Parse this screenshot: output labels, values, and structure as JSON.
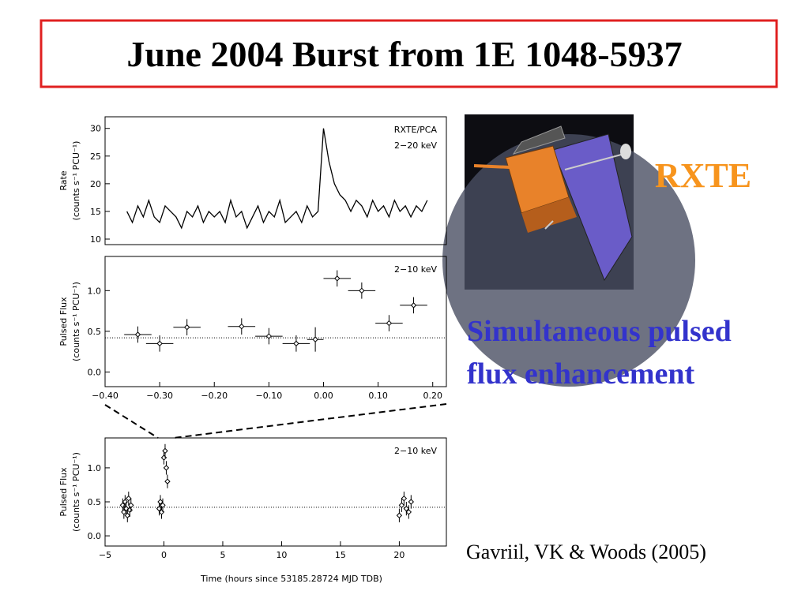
{
  "title": "June 2004 Burst from 1E 1048-5937",
  "satellite_label": "RXTE",
  "finding": [
    "Simultaneous pulsed",
    "flux enhancement"
  ],
  "citation": "Gavriil, VK & Woods  (2005)",
  "chart_data": [
    {
      "type": "line",
      "color": "#000000",
      "ylabel": [
        "Rate",
        "(counts s⁻¹ PCU⁻¹)"
      ],
      "annotations": [
        "RXTE/PCA",
        "2−20 keV"
      ],
      "xlim": [
        -0.4,
        0.225
      ],
      "ylim": [
        9,
        32.1
      ],
      "yticks": [
        10,
        15,
        20,
        25,
        30
      ],
      "x": [
        -0.36,
        -0.35,
        -0.34,
        -0.33,
        -0.32,
        -0.31,
        -0.3,
        -0.29,
        -0.28,
        -0.27,
        -0.26,
        -0.25,
        -0.24,
        -0.23,
        -0.22,
        -0.21,
        -0.2,
        -0.19,
        -0.18,
        -0.17,
        -0.16,
        -0.15,
        -0.14,
        -0.13,
        -0.12,
        -0.11,
        -0.1,
        -0.09,
        -0.08,
        -0.07,
        -0.06,
        -0.05,
        -0.04,
        -0.03,
        -0.02,
        -0.01,
        0.0,
        0.01,
        0.02,
        0.03,
        0.04,
        0.05,
        0.06,
        0.07,
        0.08,
        0.09,
        0.1,
        0.11,
        0.12,
        0.13,
        0.14,
        0.15,
        0.16,
        0.17,
        0.18,
        0.19
      ],
      "values": [
        15,
        13,
        16,
        14,
        17,
        14,
        13,
        16,
        15,
        14,
        12,
        15,
        14,
        16,
        13,
        15,
        14,
        15,
        13,
        17,
        14,
        15,
        12,
        14,
        16,
        13,
        15,
        14,
        17,
        13,
        14,
        15,
        13,
        16,
        14,
        15,
        30,
        24,
        20,
        18,
        17,
        15,
        17,
        16,
        14,
        17,
        15,
        16,
        14,
        17,
        15,
        16,
        14,
        16,
        15,
        17
      ]
    },
    {
      "type": "scatter",
      "color": "#000000",
      "ylabel": [
        "Pulsed Flux",
        "(counts s⁻¹ PCU⁻¹)"
      ],
      "annotations": [
        "2−10 keV"
      ],
      "reference_line": 0.42,
      "xlim": [
        -0.4,
        0.225
      ],
      "ylim": [
        -0.18,
        1.42
      ],
      "xticks": [
        {
          "value": -0.4,
          "label": "−0.40"
        },
        {
          "value": -0.3,
          "label": "−0.30"
        },
        {
          "value": -0.2,
          "label": "−0.20"
        },
        {
          "value": -0.1,
          "label": "−0.10"
        },
        {
          "value": 0,
          "label": "0.00"
        },
        {
          "value": 0.1,
          "label": "0.10"
        },
        {
          "value": 0.2,
          "label": "0.20"
        }
      ],
      "yticks": [
        {
          "value": 0,
          "label": "0.0"
        },
        0.5,
        {
          "value": 1,
          "label": "1.0"
        }
      ],
      "x": [
        -0.34,
        -0.3,
        -0.25,
        -0.15,
        -0.1,
        -0.05,
        -0.015,
        0.025,
        0.07,
        0.12,
        0.165
      ],
      "xerr": [
        0.025,
        0.025,
        0.025,
        0.025,
        0.025,
        0.025,
        0.015,
        0.025,
        0.025,
        0.025,
        0.025
      ],
      "values": [
        0.46,
        0.35,
        0.55,
        0.56,
        0.44,
        0.35,
        0.4,
        1.15,
        1.0,
        0.6,
        0.82
      ],
      "yerr": [
        0.1,
        0.1,
        0.1,
        0.1,
        0.1,
        0.1,
        0.15,
        0.1,
        0.1,
        0.1,
        0.1
      ]
    },
    {
      "type": "scatter",
      "color": "#000000",
      "ylabel": [
        "Pulsed Flux",
        "(counts s⁻¹ PCU⁻¹)"
      ],
      "xlabel": "Time (hours since 53185.28724 MJD TDB)",
      "annotations": [
        "2−10 keV"
      ],
      "reference_line": 0.42,
      "xlim": [
        -5,
        24
      ],
      "ylim": [
        -0.15,
        1.44
      ],
      "xticks": [
        {
          "value": -5,
          "label": "−5"
        },
        0,
        5,
        10,
        15,
        20
      ],
      "yticks": [
        {
          "value": 0,
          "label": "0.0"
        },
        0.5,
        {
          "value": 1,
          "label": "1.0"
        }
      ],
      "x": [
        -3.5,
        -3.4,
        -3.3,
        -3.2,
        -3.1,
        -3.0,
        -2.9,
        -2.8,
        -0.4,
        -0.3,
        -0.2,
        -0.1,
        0.0,
        0.1,
        0.2,
        0.3,
        20.0,
        20.2,
        20.4,
        20.6,
        20.8,
        21.0
      ],
      "values": [
        0.45,
        0.35,
        0.5,
        0.4,
        0.3,
        0.55,
        0.38,
        0.45,
        0.4,
        0.5,
        0.35,
        0.45,
        1.15,
        1.25,
        1.0,
        0.8,
        0.3,
        0.45,
        0.55,
        0.4,
        0.35,
        0.5
      ],
      "yerr": [
        0.1,
        0.1,
        0.1,
        0.1,
        0.1,
        0.1,
        0.1,
        0.1,
        0.1,
        0.1,
        0.1,
        0.1,
        0.1,
        0.1,
        0.1,
        0.1,
        0.1,
        0.1,
        0.1,
        0.1,
        0.1,
        0.1
      ]
    }
  ]
}
